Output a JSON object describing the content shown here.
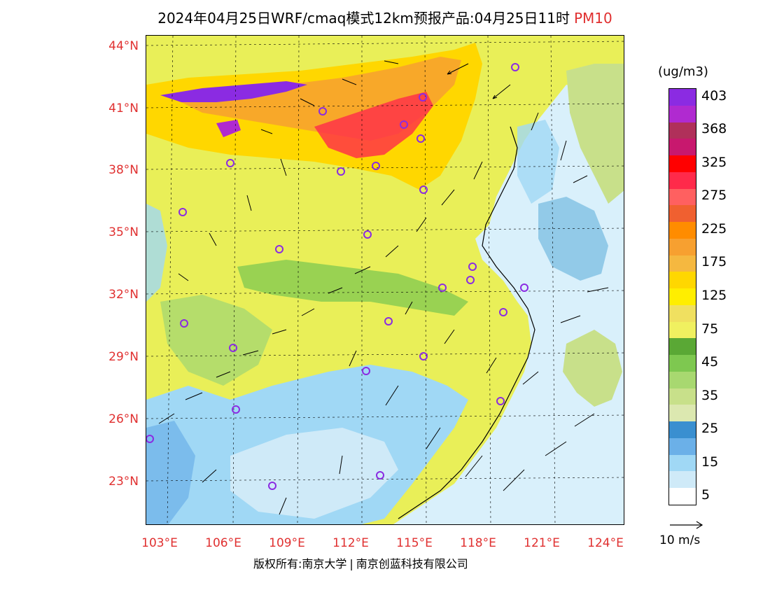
{
  "title": {
    "main": "2024年04月25日WRF/cmaq模式12km预报产品:04月25日11时",
    "pollutant": "PM10"
  },
  "map": {
    "lat_labels": [
      "44°N",
      "41°N",
      "38°N",
      "35°N",
      "32°N",
      "29°N",
      "26°N",
      "23°N"
    ],
    "lon_labels": [
      "103°E",
      "106°E",
      "109°E",
      "112°E",
      "115°E",
      "118°E",
      "121°E",
      "124°E"
    ],
    "land_color": "#e9ef58",
    "sea_color": "#d9f0fb",
    "ocean_deep_color": "#7fc0e3",
    "station_marker_color": "#8b2be2",
    "wind_arrow_color": "#000000"
  },
  "legend": {
    "unit": "(ug/m3)",
    "bins": [
      {
        "label": "403",
        "color": "#8b2be2"
      },
      {
        "label": "",
        "color": "#b02ad0"
      },
      {
        "label": "368",
        "color": "#b0305a"
      },
      {
        "label": "",
        "color": "#c8186e"
      },
      {
        "label": "325",
        "color": "#ff0000"
      },
      {
        "label": "",
        "color": "#ff2a4a"
      },
      {
        "label": "275",
        "color": "#ff6060"
      },
      {
        "label": "",
        "color": "#f06030"
      },
      {
        "label": "225",
        "color": "#ff8c00"
      },
      {
        "label": "",
        "color": "#f7a030"
      },
      {
        "label": "175",
        "color": "#f5b840"
      },
      {
        "label": "",
        "color": "#ffd700"
      },
      {
        "label": "125",
        "color": "#ffee00"
      },
      {
        "label": "",
        "color": "#f0e060"
      },
      {
        "label": "75",
        "color": "#f0f060"
      },
      {
        "label": "",
        "color": "#5aa835"
      },
      {
        "label": "45",
        "color": "#7ec850"
      },
      {
        "label": "",
        "color": "#a8d870"
      },
      {
        "label": "35",
        "color": "#c8e08a"
      },
      {
        "label": "",
        "color": "#dce8b0"
      },
      {
        "label": "25",
        "color": "#3a8fd0"
      },
      {
        "label": "",
        "color": "#6bb0e8"
      },
      {
        "label": "15",
        "color": "#a0d8f5"
      },
      {
        "label": "",
        "color": "#cfeaf8"
      },
      {
        "label": "5",
        "color": "#ffffff"
      }
    ],
    "wind_reference": "10 m/s"
  },
  "footer": {
    "copyright_prefix": "版权所有:南京大学",
    "company": "南京创蓝科技有限公司"
  }
}
